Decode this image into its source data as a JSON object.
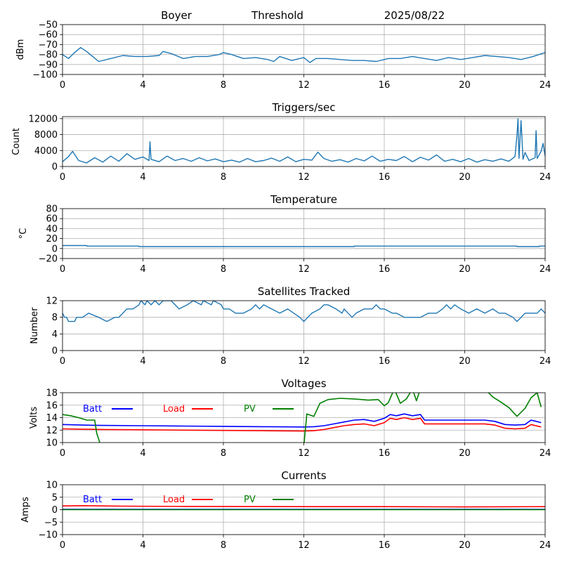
{
  "header": {
    "station": "Boyer",
    "kind": "Threshold",
    "date": "2025/08/22"
  },
  "chart_data": [
    {
      "id": "threshold",
      "type": "line",
      "title": "",
      "xlabel": "",
      "ylabel": "dBm",
      "xlim": [
        0,
        24
      ],
      "ylim": [
        -100,
        -50
      ],
      "xticks": [
        0,
        4,
        8,
        12,
        16,
        20,
        24
      ],
      "yticks": [
        -100,
        -90,
        -80,
        -70,
        -60,
        -50
      ],
      "ytick_labels": [
        "−100",
        "−90",
        "−80",
        "−70",
        "−60",
        "−50"
      ],
      "grid": true,
      "series": [
        {
          "color": "#1f77b4",
          "x": [
            0,
            0.3,
            0.6,
            0.9,
            1.2,
            1.5,
            1.8,
            2.4,
            3.0,
            3.6,
            4.2,
            4.8,
            5.0,
            5.4,
            6.0,
            6.6,
            7.2,
            7.8,
            8.0,
            8.4,
            9.0,
            9.6,
            10.2,
            10.5,
            10.8,
            11.4,
            12.0,
            12.3,
            12.6,
            13.2,
            13.8,
            14.4,
            15.0,
            15.6,
            16.2,
            16.8,
            17.4,
            18.0,
            18.6,
            19.2,
            19.8,
            20.4,
            21.0,
            21.6,
            22.2,
            22.8,
            23.4,
            24.0
          ],
          "y": [
            -80,
            -84,
            -78,
            -73,
            -77,
            -82,
            -87,
            -84,
            -81,
            -82,
            -82,
            -81,
            -77,
            -79,
            -84,
            -82,
            -82,
            -80,
            -78,
            -80,
            -84,
            -83,
            -85,
            -87,
            -82,
            -86,
            -83,
            -88,
            -84,
            -84,
            -85,
            -86,
            -86,
            -87,
            -84,
            -84,
            -82,
            -84,
            -86,
            -83,
            -85,
            -83,
            -81,
            -82,
            -83,
            -85,
            -82,
            -78
          ]
        }
      ]
    },
    {
      "id": "triggers",
      "type": "line",
      "title": "Triggers/sec",
      "xlabel": "",
      "ylabel": "Count",
      "xlim": [
        0,
        24
      ],
      "ylim": [
        0,
        12500
      ],
      "xticks": [
        0,
        4,
        8,
        12,
        16,
        20,
        24
      ],
      "yticks": [
        0,
        4000,
        8000,
        12000
      ],
      "ytick_labels": [
        "0",
        "4000",
        "8000",
        "12000"
      ],
      "grid": true,
      "series": [
        {
          "color": "#1f77b4",
          "x": [
            0,
            0.3,
            0.5,
            0.8,
            1.2,
            1.6,
            2.0,
            2.4,
            2.8,
            3.2,
            3.6,
            4.0,
            4.3,
            4.35,
            4.4,
            4.8,
            5.2,
            5.6,
            6.0,
            6.4,
            6.8,
            7.2,
            7.6,
            8.0,
            8.4,
            8.8,
            9.2,
            9.6,
            10.0,
            10.4,
            10.8,
            11.2,
            11.6,
            12.0,
            12.4,
            12.7,
            13.0,
            13.4,
            13.8,
            14.2,
            14.6,
            15.0,
            15.4,
            15.8,
            16.2,
            16.6,
            17.0,
            17.4,
            17.8,
            18.2,
            18.6,
            19.0,
            19.4,
            19.8,
            20.2,
            20.6,
            21.0,
            21.4,
            21.8,
            22.2,
            22.5,
            22.6,
            22.65,
            22.7,
            22.8,
            22.9,
            23.0,
            23.2,
            23.5,
            23.55,
            23.6,
            23.8,
            23.9,
            24.0
          ],
          "y": [
            1200,
            2500,
            3800,
            1500,
            900,
            2200,
            1100,
            2600,
            1300,
            3200,
            1800,
            2400,
            1500,
            6200,
            1800,
            1200,
            2600,
            1500,
            2000,
            1300,
            2200,
            1400,
            1900,
            1200,
            1600,
            1100,
            2000,
            1200,
            1500,
            2100,
            1300,
            2400,
            1200,
            1800,
            1600,
            3600,
            2000,
            1300,
            1700,
            1100,
            2000,
            1400,
            2600,
            1300,
            1800,
            1500,
            2500,
            1200,
            2300,
            1600,
            2900,
            1300,
            1800,
            1200,
            2000,
            1100,
            1700,
            1300,
            1900,
            1300,
            2500,
            7800,
            12000,
            2000,
            11500,
            1800,
            3500,
            1500,
            2200,
            9000,
            2000,
            3800,
            5800,
            2600
          ]
        }
      ]
    },
    {
      "id": "temperature",
      "type": "line",
      "title": "Temperature",
      "xlabel": "",
      "ylabel": "°C",
      "xlim": [
        0,
        24
      ],
      "ylim": [
        -20,
        80
      ],
      "xticks": [
        0,
        4,
        8,
        12,
        16,
        20,
        24
      ],
      "yticks": [
        -20,
        0,
        20,
        40,
        60,
        80
      ],
      "ytick_labels": [
        "−20",
        "0",
        "20",
        "40",
        "60",
        "80"
      ],
      "grid": true,
      "series": [
        {
          "color": "#1f77b4",
          "x": [
            0,
            1.2,
            1.2,
            3.8,
            3.8,
            14.5,
            14.5,
            22.6,
            22.6,
            23.7,
            23.7,
            24.0
          ],
          "y": [
            6,
            6,
            5,
            5,
            4,
            4,
            5,
            5,
            4,
            4,
            5,
            5
          ]
        }
      ]
    },
    {
      "id": "satellites",
      "type": "line",
      "title": "Satellites Tracked",
      "xlabel": "",
      "ylabel": "Number",
      "xlim": [
        0,
        24
      ],
      "ylim": [
        0,
        12
      ],
      "xticks": [
        0,
        4,
        8,
        12,
        16,
        20,
        24
      ],
      "yticks": [
        0,
        4,
        8,
        12
      ],
      "ytick_labels": [
        "0",
        "4",
        "8",
        "12"
      ],
      "grid": true,
      "series": [
        {
          "color": "#1f77b4",
          "x": [
            0,
            0.1,
            0.2,
            0.3,
            0.6,
            0.7,
            1.0,
            1.3,
            1.8,
            2.2,
            2.6,
            2.8,
            3.0,
            3.2,
            3.5,
            3.8,
            3.9,
            4.1,
            4.2,
            4.4,
            4.6,
            4.8,
            5.0,
            5.4,
            5.8,
            6.2,
            6.5,
            6.9,
            7.0,
            7.4,
            7.5,
            7.9,
            8.0,
            8.3,
            8.6,
            9.0,
            9.4,
            9.6,
            9.8,
            10.0,
            10.4,
            10.8,
            11.2,
            11.5,
            11.8,
            12.0,
            12.2,
            12.4,
            12.8,
            13.0,
            13.2,
            13.6,
            13.9,
            14.0,
            14.2,
            14.4,
            14.6,
            15.0,
            15.4,
            15.6,
            15.8,
            16.0,
            16.4,
            16.6,
            17.0,
            17.4,
            17.8,
            18.2,
            18.6,
            18.9,
            19.1,
            19.3,
            19.5,
            19.8,
            20.2,
            20.6,
            21.0,
            21.4,
            21.7,
            22.0,
            22.4,
            22.6,
            22.8,
            23.0,
            23.2,
            23.6,
            23.8,
            24.0
          ],
          "y": [
            9,
            8,
            8,
            7,
            7,
            8,
            8,
            9,
            8,
            7,
            8,
            8,
            9,
            10,
            10,
            11,
            12,
            11,
            12,
            11,
            12,
            11,
            12,
            12,
            10,
            11,
            12,
            11,
            12,
            11,
            12,
            11,
            10,
            10,
            9,
            9,
            10,
            11,
            10,
            11,
            10,
            9,
            10,
            9,
            8,
            7,
            8,
            9,
            10,
            11,
            11,
            10,
            9,
            10,
            9,
            8,
            9,
            10,
            10,
            11,
            10,
            10,
            9,
            9,
            8,
            8,
            8,
            9,
            9,
            10,
            11,
            10,
            11,
            10,
            9,
            10,
            9,
            10,
            9,
            9,
            8,
            7,
            8,
            9,
            9,
            9,
            10,
            9
          ]
        }
      ]
    },
    {
      "id": "voltages",
      "type": "line",
      "title": "Voltages",
      "xlabel": "",
      "ylabel": "Volts",
      "xlim": [
        0,
        24
      ],
      "ylim": [
        10,
        18
      ],
      "xticks": [
        0,
        4,
        8,
        12,
        16,
        20,
        24
      ],
      "yticks": [
        10,
        12,
        14,
        16,
        18
      ],
      "ytick_labels": [
        "10",
        "12",
        "14",
        "16",
        "18"
      ],
      "grid": true,
      "legend": [
        {
          "label": "Batt",
          "color": "#0000ff"
        },
        {
          "label": "Load",
          "color": "#ff0000"
        },
        {
          "label": "PV",
          "color": "#008000"
        }
      ],
      "series": [
        {
          "name": "Batt",
          "color": "#0000ff",
          "x": [
            0,
            1,
            2,
            4,
            6,
            8,
            10,
            12,
            12.5,
            13,
            13.5,
            14,
            14.5,
            15,
            15.5,
            16,
            16.3,
            16.6,
            17,
            17.4,
            17.8,
            18,
            19,
            20,
            21,
            21.5,
            22,
            22.5,
            23,
            23.3,
            23.8
          ],
          "y": [
            12.9,
            12.8,
            12.75,
            12.7,
            12.65,
            12.6,
            12.55,
            12.5,
            12.55,
            12.7,
            13.0,
            13.3,
            13.6,
            13.7,
            13.4,
            13.9,
            14.5,
            14.3,
            14.6,
            14.3,
            14.5,
            13.6,
            13.6,
            13.6,
            13.6,
            13.4,
            12.9,
            12.8,
            12.9,
            13.6,
            13.2
          ]
        },
        {
          "name": "Load",
          "color": "#ff0000",
          "x": [
            0,
            1,
            2,
            4,
            6,
            8,
            10,
            12,
            12.5,
            13,
            13.5,
            14,
            14.5,
            15,
            15.5,
            16,
            16.3,
            16.6,
            17,
            17.4,
            17.8,
            18,
            19,
            20,
            21,
            21.5,
            22,
            22.5,
            23,
            23.3,
            23.8
          ],
          "y": [
            12.2,
            12.15,
            12.1,
            12.05,
            12.0,
            11.95,
            11.9,
            11.85,
            11.9,
            12.1,
            12.4,
            12.7,
            12.9,
            13.0,
            12.7,
            13.2,
            13.9,
            13.7,
            14.0,
            13.7,
            13.9,
            13.0,
            13.0,
            13.0,
            13.0,
            12.8,
            12.3,
            12.2,
            12.3,
            12.9,
            12.5
          ]
        },
        {
          "name": "PV",
          "color": "#008000",
          "x": [
            0,
            0.4,
            0.8,
            1.2,
            1.6,
            1.7,
            1.9,
            12.0,
            12.15,
            12.5,
            12.8,
            13.2,
            13.8,
            14.5,
            15.2,
            15.7,
            16.0,
            16.2,
            16.5,
            16.8,
            17.1,
            17.4,
            17.6,
            17.8,
            18.2,
            19,
            20,
            21,
            21.4,
            21.8,
            22.2,
            22.6,
            23.0,
            23.3,
            23.6,
            23.8
          ],
          "y": [
            14.5,
            14.3,
            14.0,
            13.6,
            13.6,
            11.5,
            9.5,
            9.5,
            14.6,
            14.2,
            16.3,
            16.9,
            17.1,
            17.0,
            16.8,
            16.9,
            15.9,
            16.4,
            18.6,
            16.3,
            17.0,
            18.6,
            16.7,
            18.6,
            18.6,
            18.6,
            18.6,
            18.6,
            17.3,
            16.5,
            15.6,
            14.2,
            15.5,
            17.2,
            18.0,
            15.7
          ]
        }
      ]
    },
    {
      "id": "currents",
      "type": "line",
      "title": "Currents",
      "xlabel": "",
      "ylabel": "Amps",
      "xlim": [
        0,
        24
      ],
      "ylim": [
        -10,
        10
      ],
      "xticks": [
        0,
        4,
        8,
        12,
        16,
        20,
        24
      ],
      "yticks": [
        -10,
        -5,
        0,
        5,
        10
      ],
      "ytick_labels": [
        "−10",
        "−5",
        "0",
        "5",
        "10"
      ],
      "grid": true,
      "legend": [
        {
          "label": "Batt",
          "color": "#0000ff"
        },
        {
          "label": "Load",
          "color": "#ff0000"
        },
        {
          "label": "PV",
          "color": "#008000"
        }
      ],
      "series": [
        {
          "name": "Batt",
          "color": "#0000ff",
          "x": [
            0,
            24
          ],
          "y": [
            0.1,
            0.1
          ]
        },
        {
          "name": "Load",
          "color": "#ff0000",
          "x": [
            0,
            1,
            3,
            6,
            12,
            16,
            20,
            24
          ],
          "y": [
            1.5,
            1.6,
            1.4,
            1.3,
            1.2,
            1.2,
            1.1,
            1.2
          ]
        },
        {
          "name": "PV",
          "color": "#008000",
          "x": [
            0,
            24
          ],
          "y": [
            0.0,
            0.0
          ]
        }
      ]
    }
  ]
}
